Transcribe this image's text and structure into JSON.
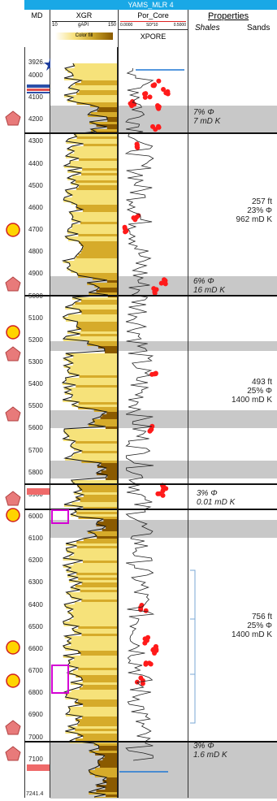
{
  "title": "YAMS_MLR 4",
  "headers": {
    "md": "MD",
    "xgr": "XGR",
    "xgr_scale_left": "10",
    "xgr_unit": "gAPI",
    "xgr_scale_right": "150",
    "xgr_fill": "Color fill",
    "por": "Por_Core",
    "por_scale_left": "0.0000",
    "por_scale_mid": "SD*10",
    "por_scale_right": "0.5000",
    "xpore": "XPORE",
    "properties": "Properties",
    "shales": "Shales",
    "sands": "Sands"
  },
  "depth_ticks": [
    "3926.",
    "4000",
    "4100",
    "4200",
    "4300",
    "4400",
    "4500",
    "4600",
    "4700",
    "4800",
    "4900",
    "5000",
    "5100",
    "5200",
    "5300",
    "5400",
    "5500",
    "5600",
    "5700",
    "5800",
    "5900",
    "6000",
    "6100",
    "6200",
    "6300",
    "6400",
    "6500",
    "6600",
    "6700",
    "6800",
    "6900",
    "7000",
    "7100",
    "7241.4"
  ],
  "shale_labels": [
    {
      "phi": "7% Φ",
      "perm": "7 mD K"
    },
    {
      "phi": "6% Φ",
      "perm": "16 mD K"
    },
    {
      "phi": "3% Φ",
      "perm": "0.01 mD K"
    },
    {
      "phi": "3% Φ",
      "perm": "1.6 mD K"
    }
  ],
  "sand_labels": [
    {
      "thickness": "257 ft",
      "phi": "23% Φ",
      "perm": "962 mD K"
    },
    {
      "thickness": "493 ft",
      "phi": "25% Φ",
      "perm": "1400 mD K"
    },
    {
      "thickness": "756 ft",
      "phi": "25% Φ",
      "perm": "1400 mD K"
    }
  ],
  "colors": {
    "title_bar": "#19a8e6",
    "gr_fill": "#c9a227",
    "shale_band": "#c8c8c8",
    "core_points": "#ff1a1a",
    "pentagon": "#e87a7a",
    "circle": "#ffd400",
    "magenta_box": "#d400d4",
    "star": "#1f3f9f"
  },
  "icons": [
    "star-icon",
    "pentagon-icon",
    "circle-icon",
    "rectangle-marker-icon"
  ]
}
